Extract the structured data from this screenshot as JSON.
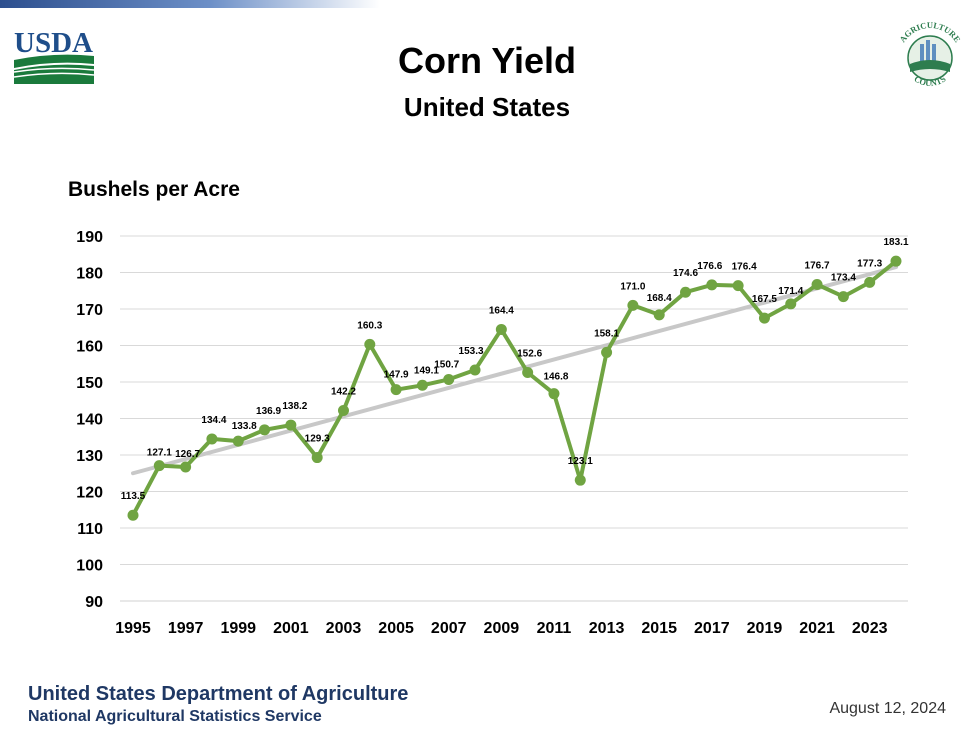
{
  "header": {
    "title": "Corn Yield",
    "subtitle": "United States",
    "usda_logo_text": "USDA",
    "ag_logo_text_top": "AGRICULTURE",
    "ag_logo_text_bottom": "COUNTS"
  },
  "footer": {
    "org_name": "United States Department of Agriculture",
    "org_sub": "National Agricultural Statistics Service",
    "date": "August 12, 2024"
  },
  "colors": {
    "line": "#70a442",
    "trend": "#c8c8c8",
    "grid": "#d9d9d9",
    "usda_blue": "#1f4e8a",
    "usda_green": "#1a7a3c"
  },
  "chart_data": {
    "type": "line",
    "ylabel": "Bushels per Acre",
    "xlabel": "",
    "ylim": [
      90,
      190
    ],
    "yticks": [
      90,
      100,
      110,
      120,
      130,
      140,
      150,
      160,
      170,
      180,
      190
    ],
    "xticks": [
      1995,
      1997,
      1999,
      2001,
      2003,
      2005,
      2007,
      2009,
      2011,
      2013,
      2015,
      2017,
      2019,
      2021,
      2023
    ],
    "grid": true,
    "x": [
      1995,
      1996,
      1997,
      1998,
      1999,
      2000,
      2001,
      2002,
      2003,
      2004,
      2005,
      2006,
      2007,
      2008,
      2009,
      2010,
      2011,
      2012,
      2013,
      2014,
      2015,
      2016,
      2017,
      2018,
      2019,
      2020,
      2021,
      2022,
      2023,
      2024
    ],
    "series": [
      {
        "values": [
          113.5,
          127.1,
          126.7,
          134.4,
          133.8,
          136.9,
          138.2,
          129.3,
          142.2,
          160.3,
          147.9,
          149.1,
          150.7,
          153.3,
          164.4,
          152.6,
          146.8,
          123.1,
          158.1,
          171.0,
          168.4,
          174.6,
          176.6,
          176.4,
          167.5,
          171.4,
          176.7,
          173.4,
          177.3,
          183.1
        ],
        "labels": [
          "113.5",
          "127.1",
          "126.7",
          "134.4",
          "133.8",
          "136.9",
          "138.2",
          "129.3",
          "142.2",
          "160.3",
          "147.9",
          "149.1",
          "150.7",
          "153.3",
          "164.4",
          "152.6",
          "146.8",
          "123.1",
          "158.1",
          "171.0",
          "168.4",
          "174.6",
          "176.6",
          "176.4",
          "167.5",
          "171.4",
          "176.7",
          "173.4",
          "177.3",
          "183.1"
        ]
      }
    ],
    "trendline": {
      "x": [
        1995,
        2024
      ],
      "values": [
        125.0,
        181.5
      ]
    }
  }
}
